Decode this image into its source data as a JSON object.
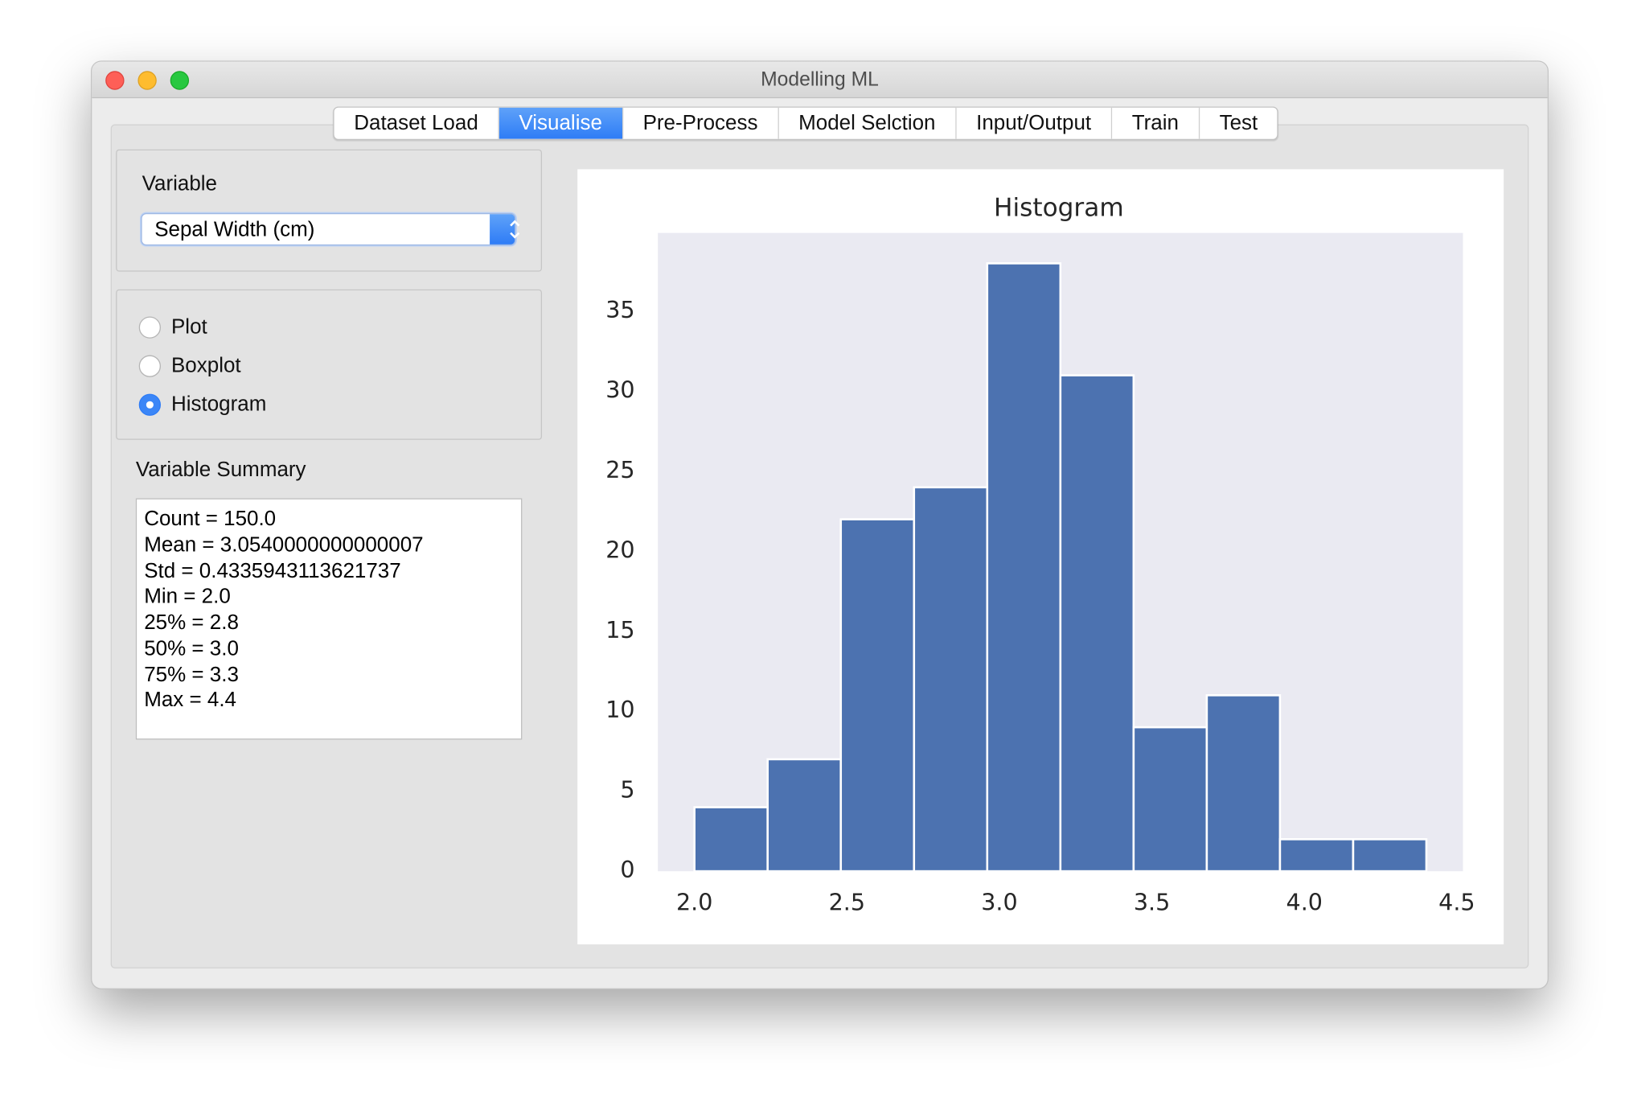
{
  "window": {
    "title": "Modelling ML"
  },
  "tabs": [
    "Dataset Load",
    "Visualise",
    "Pre-Process",
    "Model Selction",
    "Input/Output",
    "Train",
    "Test"
  ],
  "variable_panel": {
    "label": "Variable",
    "selected": "Sepal Width (cm)"
  },
  "plot_options": [
    "Plot",
    "Boxplot",
    "Histogram"
  ],
  "summary": {
    "label": "Variable Summary",
    "lines": [
      "Count = 150.0",
      "Mean = 3.0540000000000007",
      "Std = 0.4335943113621737",
      "Min = 2.0",
      "25% = 2.8",
      "50% = 3.0",
      "75% = 3.3",
      "Max = 4.4"
    ]
  },
  "chart_data": {
    "type": "histogram",
    "title": "Histogram",
    "bins": [
      2.0,
      2.24,
      2.48,
      2.72,
      2.96,
      3.2,
      3.44,
      3.68,
      3.92,
      4.16,
      4.4
    ],
    "values": [
      4,
      7,
      22,
      24,
      38,
      31,
      9,
      11,
      2,
      2
    ],
    "color": "#4c72b0",
    "background": "#eaeaf2",
    "grid": false,
    "xlim": [
      1.88,
      4.52
    ],
    "xticks": [
      {
        "value": 2,
        "label": "2.0"
      },
      {
        "value": 2.5,
        "label": "2.5"
      },
      {
        "value": 3,
        "label": "3.0"
      },
      {
        "value": 3.5,
        "label": "3.5"
      },
      {
        "value": 4,
        "label": "4.0"
      },
      {
        "value": 4.5,
        "label": "4.5"
      }
    ],
    "ylim": [
      0,
      39.9
    ],
    "yticks": [
      0,
      5,
      10,
      15,
      20,
      25,
      30,
      35
    ]
  }
}
